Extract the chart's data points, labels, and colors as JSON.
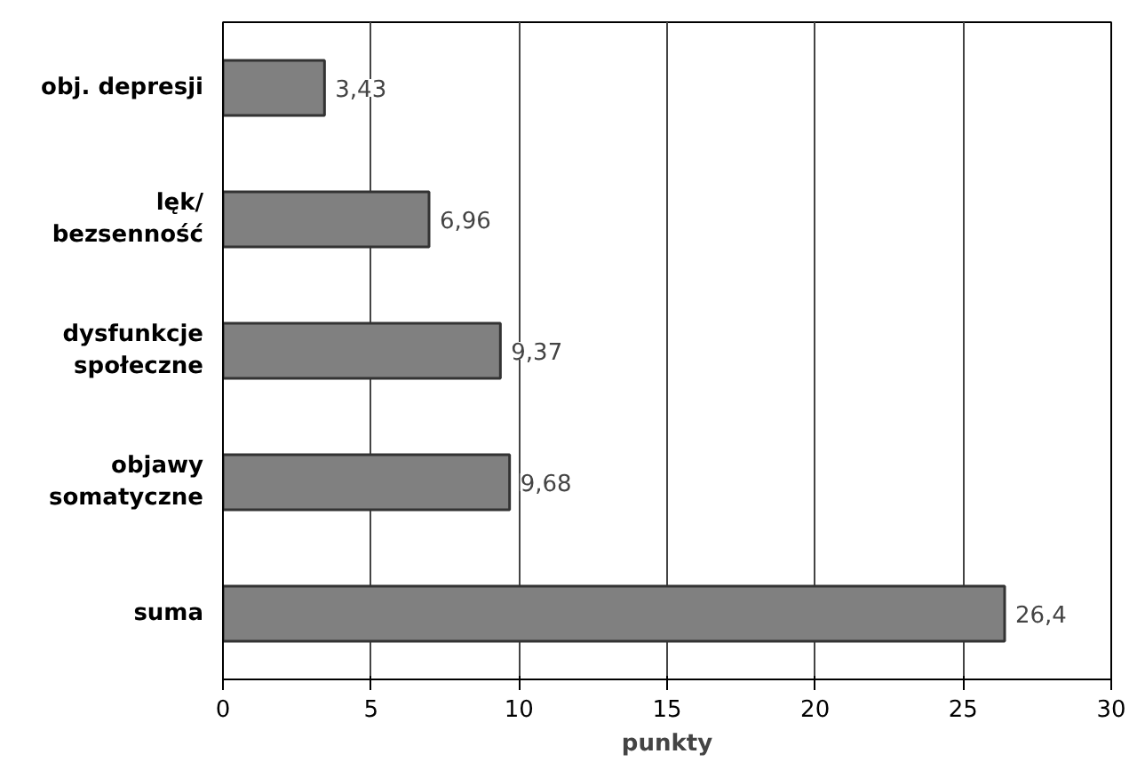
{
  "chart_data": {
    "type": "bar",
    "orientation": "horizontal",
    "xlabel": "punkty",
    "categories": [
      "obj. depresji",
      "lęk/\nbezsenność",
      "dysfunkcje\nspołeczne",
      "objawy\nsomatyczne",
      "suma"
    ],
    "values": [
      3.43,
      6.96,
      9.37,
      9.68,
      26.4
    ],
    "value_labels": [
      "3,43",
      "6,96",
      "9,37",
      "9,68",
      "26,4"
    ],
    "color": "#808080",
    "xlim": [
      0,
      30
    ],
    "xticks": [
      0,
      5,
      10,
      15,
      20,
      25,
      30
    ],
    "grid": "x"
  }
}
